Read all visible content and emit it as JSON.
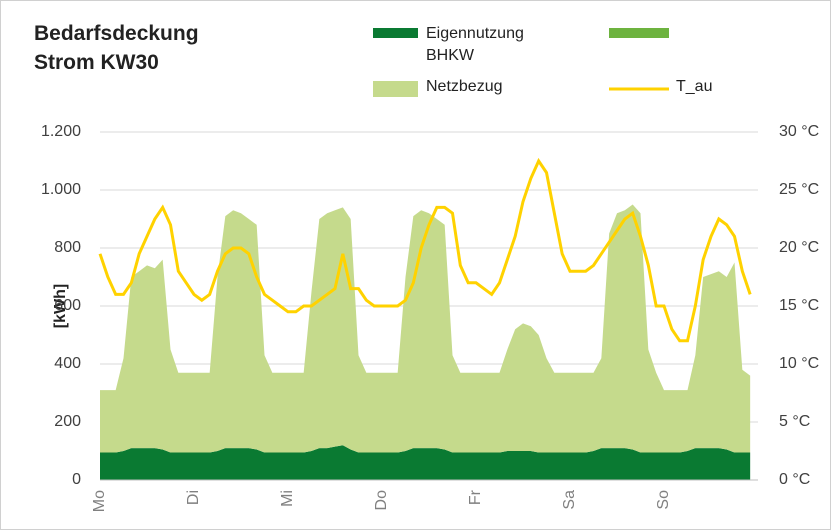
{
  "chart_data": {
    "type": "stacked_area",
    "title": "Bedarfsdeckung Strom KW30",
    "ylabel": "[kWh]",
    "categories": [
      "Mo",
      null,
      null,
      null,
      null,
      null,
      null,
      null,
      null,
      null,
      null,
      null,
      "Di",
      null,
      null,
      null,
      null,
      null,
      null,
      null,
      null,
      null,
      null,
      null,
      "Mi",
      null,
      null,
      null,
      null,
      null,
      null,
      null,
      null,
      null,
      null,
      null,
      "Do",
      null,
      null,
      null,
      null,
      null,
      null,
      null,
      null,
      null,
      null,
      null,
      "Fr",
      null,
      null,
      null,
      null,
      null,
      null,
      null,
      null,
      null,
      null,
      null,
      "Sa",
      null,
      null,
      null,
      null,
      null,
      null,
      null,
      null,
      null,
      null,
      null,
      "So",
      null,
      null,
      null,
      null,
      null,
      null,
      null,
      null,
      null,
      null,
      null
    ],
    "series": [
      {
        "name": "Eigennutzung BHKW",
        "color": "#0a7a32",
        "values": [
          95,
          95,
          95,
          100,
          110,
          110,
          110,
          110,
          105,
          95,
          95,
          95,
          95,
          95,
          95,
          100,
          110,
          110,
          110,
          110,
          105,
          95,
          95,
          95,
          95,
          95,
          95,
          100,
          110,
          110,
          115,
          120,
          105,
          95,
          95,
          95,
          95,
          95,
          95,
          100,
          110,
          110,
          110,
          110,
          105,
          95,
          95,
          95,
          95,
          95,
          95,
          95,
          100,
          100,
          100,
          100,
          95,
          95,
          95,
          95,
          95,
          95,
          95,
          100,
          110,
          110,
          110,
          110,
          105,
          95,
          95,
          95,
          95,
          95,
          95,
          100,
          110,
          110,
          110,
          110,
          105,
          95,
          95,
          95
        ]
      },
      {
        "color": "#6db33f",
        "values": [
          0,
          0,
          0,
          0,
          0,
          0,
          0,
          0,
          0,
          0,
          0,
          0,
          0,
          0,
          0,
          0,
          0,
          0,
          0,
          0,
          0,
          0,
          0,
          0,
          0,
          0,
          0,
          0,
          0,
          0,
          0,
          0,
          0,
          0,
          0,
          0,
          0,
          0,
          0,
          0,
          0,
          0,
          0,
          0,
          0,
          0,
          0,
          0,
          0,
          0,
          0,
          0,
          0,
          0,
          0,
          0,
          0,
          0,
          0,
          0,
          0,
          0,
          0,
          0,
          0,
          0,
          0,
          0,
          0,
          0,
          0,
          0,
          0,
          0,
          0,
          0,
          0,
          0,
          0,
          0,
          0,
          0,
          0,
          0
        ]
      },
      {
        "name": "Netzbezug",
        "color": "#c5da8c",
        "values": [
          215,
          215,
          215,
          320,
          590,
          610,
          630,
          620,
          655,
          355,
          275,
          275,
          275,
          275,
          275,
          600,
          800,
          820,
          810,
          790,
          775,
          335,
          275,
          275,
          275,
          275,
          275,
          550,
          790,
          810,
          815,
          820,
          795,
          335,
          275,
          275,
          275,
          275,
          275,
          600,
          800,
          820,
          810,
          790,
          775,
          335,
          275,
          275,
          275,
          275,
          275,
          275,
          350,
          420,
          440,
          430,
          405,
          325,
          275,
          275,
          275,
          275,
          275,
          270,
          310,
          740,
          810,
          820,
          845,
          825,
          355,
          275,
          215,
          215,
          215,
          210,
          320,
          590,
          600,
          610,
          595,
          655,
          285,
          265
        ]
      },
      {
        "name": "T_au",
        "color": "#ffd200",
        "type": "line",
        "axis": "y2",
        "values": [
          19.5,
          17.5,
          16,
          16,
          17,
          19.5,
          21,
          22.5,
          23.5,
          22,
          18,
          17,
          16,
          15.5,
          16,
          18,
          19.5,
          20,
          20,
          19.5,
          17.5,
          16,
          15.5,
          15,
          14.5,
          14.5,
          15,
          15,
          15.5,
          16,
          16.5,
          19.5,
          16.5,
          16.5,
          15.5,
          15,
          15,
          15,
          15,
          15.5,
          17,
          20,
          22,
          23.5,
          23.5,
          23,
          18.5,
          17,
          17,
          16.5,
          16,
          17,
          19,
          21,
          24,
          26,
          27.5,
          26.5,
          23,
          19.5,
          18,
          18,
          18,
          18.5,
          19.5,
          20.5,
          21.5,
          22.5,
          23,
          21,
          18.5,
          15,
          15,
          13,
          12,
          12,
          15,
          19,
          21,
          22.5,
          22,
          21,
          18,
          16
        ]
      }
    ],
    "ylim": [
      0,
      1200
    ],
    "yticks": [
      0,
      200,
      400,
      600,
      800,
      {
        "value": 1000,
        "label": "1.000"
      },
      {
        "value": 1200,
        "label": "1.200"
      }
    ],
    "y2lim": [
      0,
      30
    ],
    "y2ticks": [
      {
        "value": 0,
        "label": "0 °C"
      },
      {
        "value": 5,
        "label": "5 °C"
      },
      {
        "value": 10,
        "label": "10 °C"
      },
      {
        "value": 15,
        "label": "15 °C"
      },
      {
        "value": 20,
        "label": "20 °C"
      },
      {
        "value": 25,
        "label": "25 °C"
      },
      {
        "value": 30,
        "label": "30 °C"
      }
    ],
    "grid": true
  }
}
